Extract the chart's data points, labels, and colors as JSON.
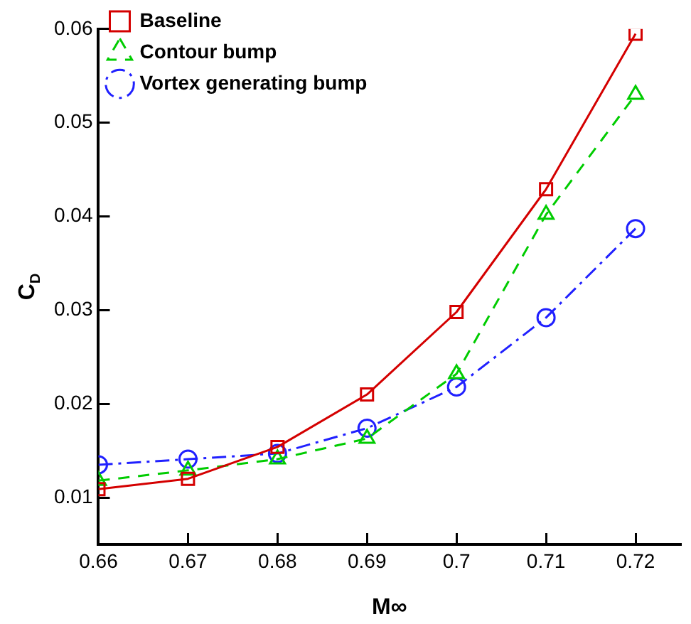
{
  "chart_data": {
    "type": "line",
    "xlabel": "M∞",
    "ylabel": "C$_{D}$",
    "x": [
      0.66,
      0.67,
      0.68,
      0.69,
      0.7,
      0.71,
      0.72
    ],
    "xlim": [
      0.66,
      0.725
    ],
    "xticks": [
      0.66,
      0.67,
      0.68,
      0.69,
      0.7,
      0.71,
      0.72
    ],
    "ylim": [
      0.005,
      0.06
    ],
    "yticks": [
      0.01,
      0.02,
      0.03,
      0.04,
      0.05,
      0.06
    ],
    "grid": false,
    "legend": "top left",
    "series": [
      {
        "name": "Baseline",
        "color": "#d40000",
        "marker": "square",
        "line_style": "solid",
        "values": [
          0.0109,
          0.012,
          0.0154,
          0.021,
          0.0298,
          0.0429,
          0.0595
        ]
      },
      {
        "name": "Contour bump",
        "color": "#00cc00",
        "marker": "triangle",
        "line_style": "dashed",
        "values": [
          0.0118,
          0.0129,
          0.0141,
          0.0163,
          0.0232,
          0.0402,
          0.053
        ]
      },
      {
        "name": "Vortex generating bump",
        "color": "#2020ff",
        "marker": "circle",
        "line_style": "dashdot",
        "values": [
          0.0135,
          0.0141,
          0.0147,
          0.0174,
          0.0218,
          0.0292,
          0.0387
        ]
      }
    ]
  }
}
